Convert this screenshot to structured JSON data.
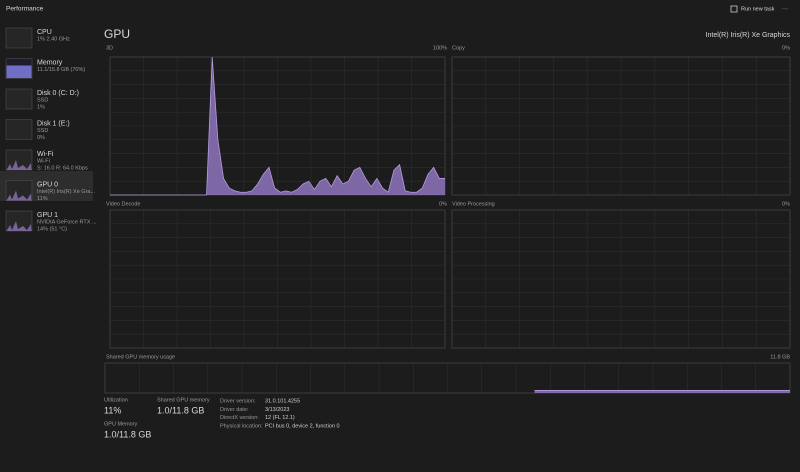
{
  "window": {
    "title": "Performance",
    "run_new_task": "Run new task",
    "more": "···"
  },
  "sidebar": [
    {
      "name": "CPU",
      "details": [
        "1% 2.40 GHz"
      ]
    },
    {
      "name": "Memory",
      "details": [
        "11.1/15.8 GB (70%)"
      ]
    },
    {
      "name": "Disk 0 (C: D:)",
      "details": [
        "SSD",
        "1%"
      ]
    },
    {
      "name": "Disk 1 (E:)",
      "details": [
        "SSD",
        "0%"
      ]
    },
    {
      "name": "Wi-Fi",
      "details": [
        "Wi-Fi",
        "S: 16.0 R: 64.0 Kbps"
      ]
    },
    {
      "name": "GPU 0",
      "details": [
        "Intel(R) Iris(R) Xe Gra...",
        "11%"
      ]
    },
    {
      "name": "GPU 1",
      "details": [
        "NVIDIA GeForce RTX ...",
        "14% (51 °C)"
      ]
    }
  ],
  "main": {
    "title": "GPU",
    "adapter": "Intel(R) Iris(R) Xe Graphics"
  },
  "panels": {
    "three_d": {
      "label": "3D",
      "max_label": "100%",
      "ylim": [
        0,
        100
      ],
      "values": [
        0,
        0,
        0,
        0,
        0,
        0,
        0,
        0,
        0,
        0,
        0,
        0,
        0,
        0,
        0,
        0,
        0,
        0,
        100,
        40,
        12,
        5,
        3,
        2,
        2,
        3,
        8,
        15,
        20,
        5,
        2,
        3,
        2,
        4,
        8,
        10,
        4,
        10,
        12,
        6,
        14,
        8,
        10,
        18,
        20,
        12,
        6,
        12,
        5,
        2,
        18,
        22,
        3,
        2,
        2,
        5,
        15,
        20,
        12,
        12
      ]
    },
    "copy": {
      "label": "Copy",
      "max_label": "0%"
    },
    "video_decode": {
      "label": "Video Decode",
      "max_label": "0%"
    },
    "video_processing": {
      "label": "Video Processing",
      "max_label": "0%"
    },
    "shared_memory": {
      "label": "Shared GPU memory usage",
      "max_label": "11.8 GB",
      "ylim": [
        0,
        11.8
      ],
      "values": [
        null,
        null,
        null,
        null,
        null,
        null,
        null,
        null,
        null,
        null,
        null,
        null,
        null,
        null,
        null,
        null,
        null,
        null,
        null,
        null,
        null,
        null,
        null,
        null,
        null,
        null,
        null,
        null,
        null,
        null,
        null,
        null,
        null,
        null,
        null,
        null,
        null,
        1.0,
        1.0,
        1.0,
        1.0,
        1.0,
        1.0,
        1.0,
        1.0,
        1.0,
        1.0,
        1.0,
        1.0,
        1.0,
        1.0,
        1.0,
        1.0,
        1.0,
        1.0,
        1.0,
        1.0,
        1.0,
        1.0,
        1.0
      ]
    }
  },
  "stats": [
    {
      "label": "Utilization",
      "value": "11%"
    },
    {
      "label": "Shared GPU memory",
      "value": "1.0/11.8 GB"
    },
    {
      "label": "GPU Memory",
      "value": "1.0/11.8 GB"
    }
  ],
  "info": [
    {
      "label": "Driver version:",
      "value": "31.0.101.4255"
    },
    {
      "label": "Driver date:",
      "value": "3/13/2023"
    },
    {
      "label": "DirectX version:",
      "value": "12 (FL 12.1)"
    },
    {
      "label": "Physical location:",
      "value": "PCI bus 0, device 2, function 0"
    }
  ]
}
